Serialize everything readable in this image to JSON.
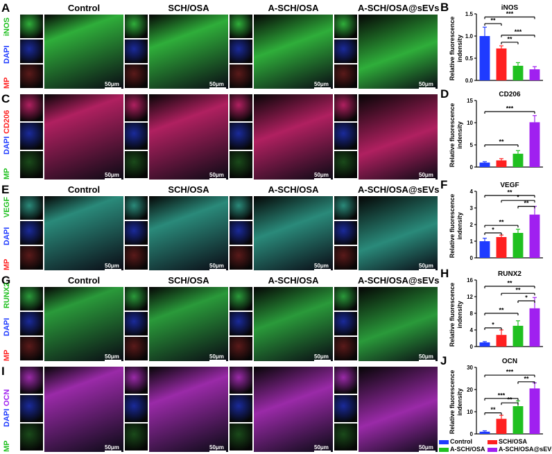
{
  "columns": [
    "Control",
    "SCH/OSA",
    "A-SCH/OSA",
    "A-SCH/OSA@sEVs"
  ],
  "scale_label": "50μm",
  "colors": {
    "control": "#1f3bff",
    "sch_osa": "#ff2020",
    "a_sch_osa": "#20c020",
    "a_sch_osa_sevs": "#a020f0"
  },
  "rows": [
    {
      "letter": "A",
      "channels": [
        {
          "name": "iNOS",
          "color": "#20c020"
        },
        {
          "name": "DAPI",
          "color": "#1f3bff"
        },
        {
          "name": "MP",
          "color": "#ff2020"
        }
      ],
      "show_titles": true,
      "stain": "#2fae3a",
      "dapi": "#1a2a9a",
      "mp": "#5a1a1a"
    },
    {
      "letter": "C",
      "channels": [
        {
          "name": "CD206",
          "color": "#ff2020"
        },
        {
          "name": "DAPI",
          "color": "#1f3bff"
        },
        {
          "name": "MP",
          "color": "#20c020"
        }
      ],
      "show_titles": false,
      "stain": "#b02060",
      "dapi": "#1a2a9a",
      "mp": "#1a4a1a"
    },
    {
      "letter": "E",
      "channels": [
        {
          "name": "VEGF",
          "color": "#20c020"
        },
        {
          "name": "DAPI",
          "color": "#1f3bff"
        },
        {
          "name": "MP",
          "color": "#ff2020"
        }
      ],
      "show_titles": true,
      "stain": "#2a8a7a",
      "dapi": "#1a2a9a",
      "mp": "#5a1a1a"
    },
    {
      "letter": "G",
      "channels": [
        {
          "name": "RUNX2",
          "color": "#20c020"
        },
        {
          "name": "DAPI",
          "color": "#1f3bff"
        },
        {
          "name": "MP",
          "color": "#ff2020"
        }
      ],
      "show_titles": true,
      "stain": "#2a9a3a",
      "dapi": "#1a2a9a",
      "mp": "#5a1a1a"
    },
    {
      "letter": "I",
      "channels": [
        {
          "name": "OCN",
          "color": "#a020f0"
        },
        {
          "name": "DAPI",
          "color": "#1f3bff"
        },
        {
          "name": "MP",
          "color": "#20c020"
        }
      ],
      "show_titles": false,
      "stain": "#9a2aa8",
      "dapi": "#1a2a9a",
      "mp": "#1a4a1a"
    }
  ],
  "chart_data": [
    {
      "letter": "B",
      "type": "bar",
      "title": "iNOS",
      "ylabel": "Relative fluorescence indensity",
      "ylim": [
        0,
        1.5
      ],
      "yticks": [
        "0.0",
        "0.5",
        "1.0",
        "1.5"
      ],
      "ytick_vals": [
        0,
        0.5,
        1.0,
        1.5
      ],
      "values": [
        1.0,
        0.72,
        0.33,
        0.25
      ],
      "errors": [
        0.2,
        0.06,
        0.07,
        0.06
      ],
      "sig": [
        {
          "a": 0,
          "b": 1,
          "label": "**",
          "level": 1.28
        },
        {
          "a": 0,
          "b": 3,
          "label": "***",
          "level": 1.43
        },
        {
          "a": 1,
          "b": 2,
          "label": "**",
          "level": 0.86
        },
        {
          "a": 1,
          "b": 3,
          "label": "***",
          "level": 1.02
        }
      ]
    },
    {
      "letter": "D",
      "type": "bar",
      "title": "CD206",
      "ylabel": "Relative fluorescence indensity",
      "ylim": [
        0,
        15
      ],
      "yticks": [
        "0",
        "5",
        "10",
        "15"
      ],
      "ytick_vals": [
        0,
        5,
        10,
        15
      ],
      "values": [
        1.0,
        1.5,
        3.0,
        10.1
      ],
      "errors": [
        0.2,
        0.4,
        0.7,
        1.5
      ],
      "sig": [
        {
          "a": 0,
          "b": 2,
          "label": "**",
          "level": 5.0
        },
        {
          "a": 0,
          "b": 3,
          "label": "***",
          "level": 12.5
        }
      ]
    },
    {
      "letter": "F",
      "type": "bar",
      "title": "VEGF",
      "ylabel": "Relative fluorescence indensity",
      "ylim": [
        0,
        4
      ],
      "yticks": [
        "0",
        "1",
        "2",
        "3",
        "4"
      ],
      "ytick_vals": [
        0,
        1,
        2,
        3,
        4
      ],
      "values": [
        1.0,
        1.25,
        1.5,
        2.6
      ],
      "errors": [
        0.18,
        0.12,
        0.22,
        0.5
      ],
      "sig": [
        {
          "a": 0,
          "b": 1,
          "label": "*",
          "level": 1.5
        },
        {
          "a": 0,
          "b": 2,
          "label": "**",
          "level": 1.95
        },
        {
          "a": 0,
          "b": 3,
          "label": "**",
          "level": 3.75
        },
        {
          "a": 1,
          "b": 3,
          "label": "*",
          "level": 3.45
        },
        {
          "a": 2,
          "b": 3,
          "label": "**",
          "level": 3.1
        }
      ]
    },
    {
      "letter": "H",
      "type": "bar",
      "title": "RUNX2",
      "ylabel": "Relative fluorescence indensity",
      "ylim": [
        0,
        16
      ],
      "yticks": [
        "0",
        "4",
        "8",
        "12",
        "16"
      ],
      "ytick_vals": [
        0,
        4,
        8,
        12,
        16
      ],
      "values": [
        1.0,
        2.8,
        5.0,
        9.2
      ],
      "errors": [
        0.2,
        1.2,
        1.2,
        2.6
      ],
      "sig": [
        {
          "a": 0,
          "b": 1,
          "label": "*",
          "level": 4.5
        },
        {
          "a": 0,
          "b": 2,
          "label": "**",
          "level": 8.0
        },
        {
          "a": 0,
          "b": 3,
          "label": "**",
          "level": 14.5
        },
        {
          "a": 1,
          "b": 3,
          "label": "**",
          "level": 12.8
        },
        {
          "a": 2,
          "b": 3,
          "label": "*",
          "level": 11.0
        }
      ]
    },
    {
      "letter": "J",
      "type": "bar",
      "title": "OCN",
      "ylabel": "Relative fluorescence indensity",
      "ylim": [
        0,
        30
      ],
      "yticks": [
        "0",
        "10",
        "20",
        "30"
      ],
      "ytick_vals": [
        0,
        10,
        20,
        30
      ],
      "values": [
        1.0,
        6.8,
        12.5,
        20.5
      ],
      "errors": [
        0.4,
        1.6,
        2.4,
        2.5
      ],
      "sig": [
        {
          "a": 0,
          "b": 1,
          "label": "**",
          "level": 9.5
        },
        {
          "a": 0,
          "b": 2,
          "label": "***",
          "level": 16.0
        },
        {
          "a": 0,
          "b": 3,
          "label": "***",
          "level": 26.5
        },
        {
          "a": 1,
          "b": 2,
          "label": "**",
          "level": 14.0
        },
        {
          "a": 2,
          "b": 3,
          "label": "**",
          "level": 23.5
        }
      ]
    }
  ],
  "legend": [
    {
      "label": "Control",
      "color": "#1f3bff"
    },
    {
      "label": "SCH/OSA",
      "color": "#ff2020"
    },
    {
      "label": "A-SCH/OSA",
      "color": "#20c020"
    },
    {
      "label": "A-SCH/OSA@sEVs",
      "color": "#a020f0"
    }
  ]
}
